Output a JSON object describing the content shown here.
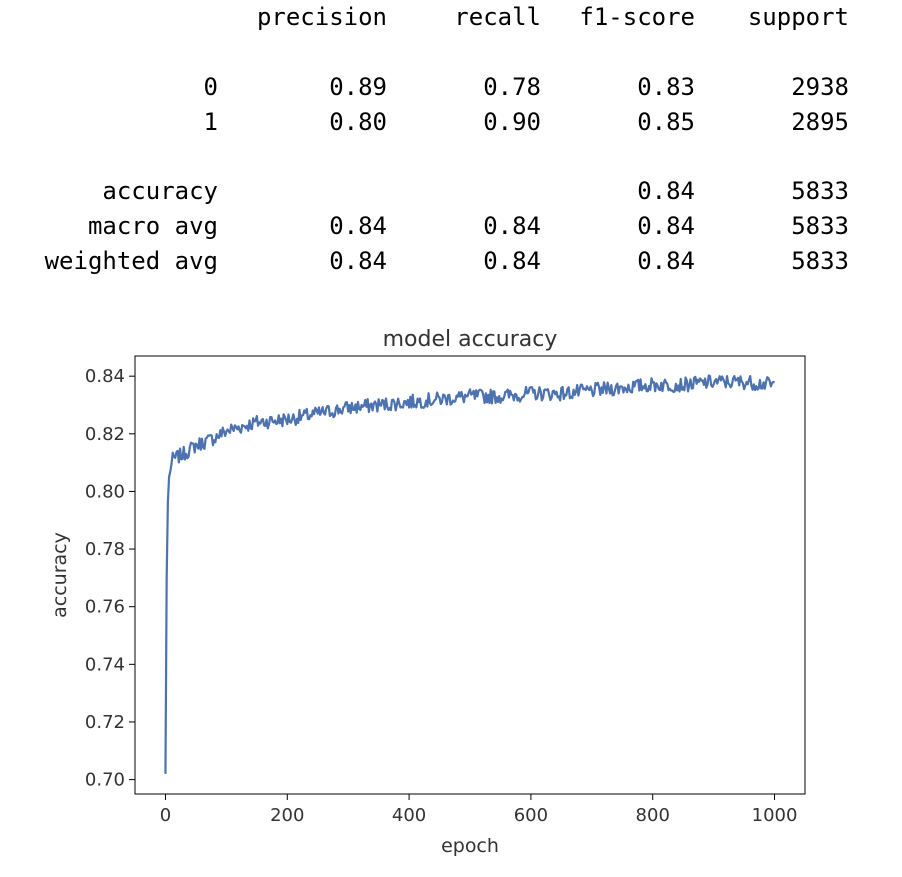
{
  "report": {
    "headers": [
      "precision",
      "recall",
      "f1-score",
      "support"
    ],
    "rows": [
      {
        "label": "0",
        "values": [
          "0.89",
          "0.78",
          "0.83",
          "2938"
        ]
      },
      {
        "label": "1",
        "values": [
          "0.80",
          "0.90",
          "0.85",
          "2895"
        ]
      },
      {
        "label": "accuracy",
        "values": [
          "",
          "",
          "0.84",
          "5833"
        ]
      },
      {
        "label": "macro avg",
        "values": [
          "0.84",
          "0.84",
          "0.84",
          "5833"
        ]
      },
      {
        "label": "weighted avg",
        "values": [
          "0.84",
          "0.84",
          "0.84",
          "5833"
        ]
      }
    ]
  },
  "chart_data": {
    "type": "line",
    "title": "model accuracy",
    "xlabel": "epoch",
    "ylabel": "accuracy",
    "xlim": [
      -50,
      1050
    ],
    "ylim": [
      0.695,
      0.847
    ],
    "xticks": [
      0,
      200,
      400,
      600,
      800,
      1000
    ],
    "yticks": [
      0.7,
      0.72,
      0.74,
      0.76,
      0.78,
      0.8,
      0.82,
      0.84
    ],
    "ytick_labels": [
      "0.70",
      "0.72",
      "0.74",
      "0.76",
      "0.78",
      "0.80",
      "0.82",
      "0.84"
    ],
    "grid": false,
    "line_color": "#4c72b0",
    "series": [
      {
        "x": [
          0,
          1,
          2,
          3,
          5,
          8,
          12,
          20,
          30,
          50,
          75,
          100,
          150,
          200,
          250,
          300,
          350,
          400,
          450,
          500,
          550,
          600,
          650,
          700,
          750,
          800,
          850,
          900,
          950,
          1000
        ],
        "values": [
          0.702,
          0.735,
          0.77,
          0.79,
          0.803,
          0.808,
          0.811,
          0.812,
          0.813,
          0.816,
          0.818,
          0.821,
          0.824,
          0.825,
          0.827,
          0.829,
          0.83,
          0.831,
          0.832,
          0.833,
          0.833,
          0.834,
          0.834,
          0.835,
          0.836,
          0.837,
          0.837,
          0.838,
          0.838,
          0.837
        ]
      }
    ]
  }
}
